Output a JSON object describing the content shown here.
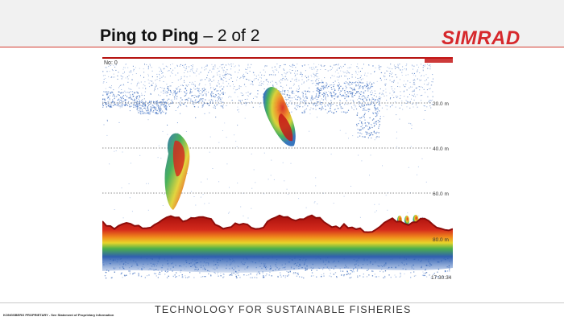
{
  "slide": {
    "title_bold": "Ping to Ping",
    "title_rest": " – 2 of 2",
    "logo": "SIMRAD",
    "tagline": "TECHNOLOGY FOR SUSTAINABLE FISHERIES",
    "proprietary": "KONGSBERG PROPRIETARY - See Statement of Proprietary Information"
  },
  "echogram": {
    "ping_label": "No: 0",
    "depth_labels": [
      "20.0 m",
      "40.0 m",
      "60.0 m",
      "80.0 m"
    ],
    "time_label": "17:30:34"
  },
  "colors": {
    "accent_red": "#d6282c",
    "echo_blue": "#2f5fb0",
    "echo_red": "#b5120e"
  }
}
